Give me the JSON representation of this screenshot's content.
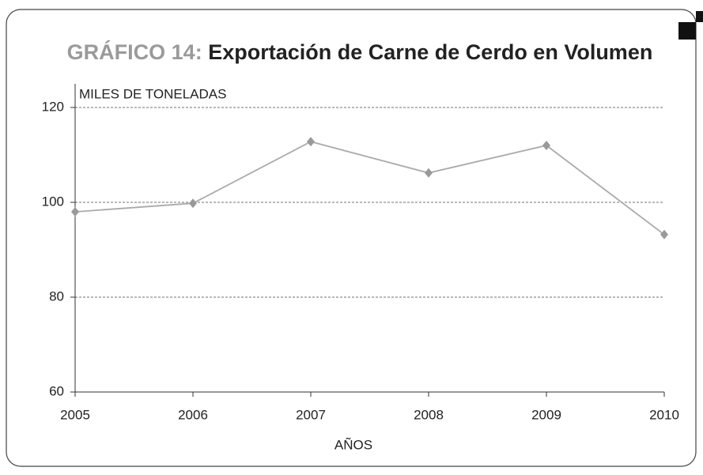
{
  "chart_data": {
    "type": "line",
    "title_label": "GRÁFICO 14:",
    "title": "Exportación de Carne de Cerdo en Volumen",
    "y_label": "MILES DE TONELADAS",
    "x_label": "AÑOS",
    "x": [
      2005,
      2006,
      2007,
      2008,
      2009,
      2010
    ],
    "series": [
      {
        "name": "Exportación",
        "color": "#aaaaaa",
        "marker_color": "#999999",
        "values": [
          98,
          99.8,
          112.8,
          106.2,
          112,
          93.2
        ]
      }
    ],
    "xlim": [
      2005,
      2010
    ],
    "xticks": [
      2005,
      2006,
      2007,
      2008,
      2009,
      2010
    ],
    "ylim": [
      60,
      120
    ],
    "yticks": [
      60,
      80,
      100,
      120
    ],
    "grid": true
  }
}
